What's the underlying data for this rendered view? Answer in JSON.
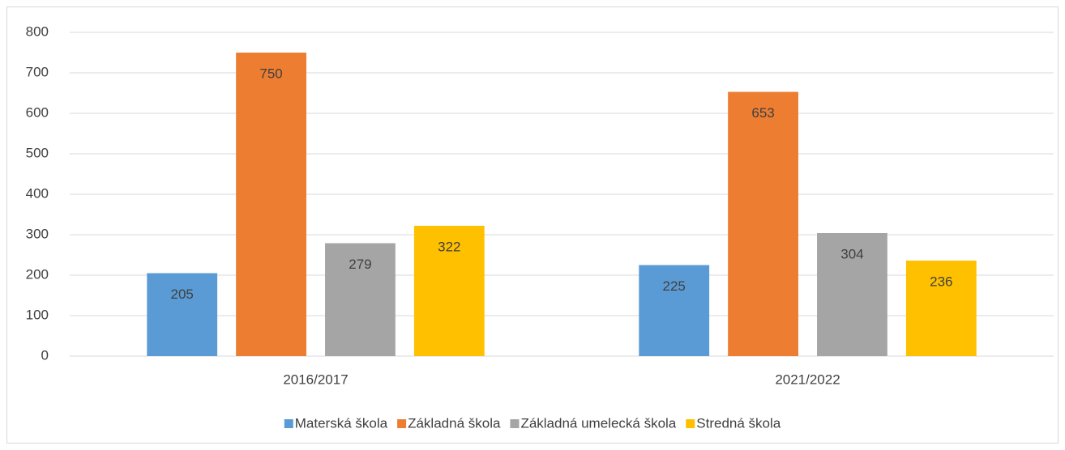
{
  "chart_data": {
    "type": "bar",
    "categories": [
      "2016/2017",
      "2021/2022"
    ],
    "series": [
      {
        "name": "Materská škola",
        "color": "#5b9bd5",
        "values": [
          205,
          225
        ]
      },
      {
        "name": "Základná škola",
        "color": "#ed7d31",
        "values": [
          750,
          653
        ]
      },
      {
        "name": "Základná umelecká škola",
        "color": "#a5a5a5",
        "values": [
          279,
          304
        ]
      },
      {
        "name": "Stredná škola",
        "color": "#ffc000",
        "values": [
          322,
          236
        ]
      }
    ],
    "ylim": [
      0,
      800
    ],
    "yticks": [
      0,
      100,
      200,
      300,
      400,
      500,
      600,
      700,
      800
    ],
    "grid": true,
    "legend": "bottom"
  }
}
